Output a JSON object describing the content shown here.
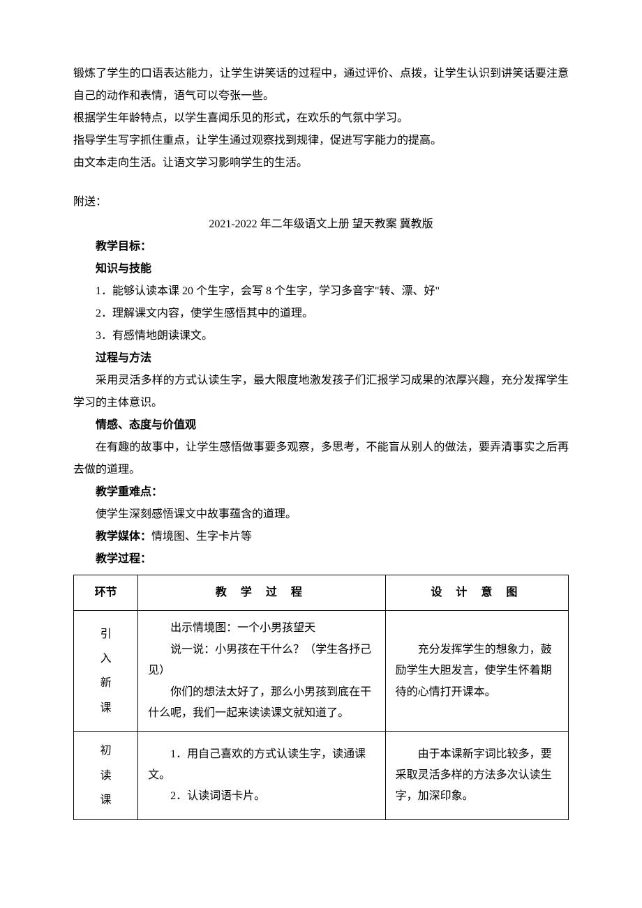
{
  "top_paragraphs": {
    "p1": "锻炼了学生的口语表达能力，让学生讲笑话的过程中，通过评价、点拨，让学生认识到讲笑话要注意自己的动作和表情，语气可以夸张一些。",
    "p2": "根据学生年龄特点，以学生喜闻乐见的形式，在欢乐的气氛中学习。",
    "p3": "指导学生写字抓住重点，让学生通过观察找到规律，促进写字能力的提高。",
    "p4": "由文本走向生活。让语文学习影响学生的生活。"
  },
  "fusong": "附送：",
  "title": "2021-2022 年二年级语文上册 望天教案 冀教版",
  "sections": {
    "goal_heading": "教学目标：",
    "knowledge_heading": "知识与技能",
    "k1": "1．能够认读本课 20 个生字，会写 8 个生字，学习多音字\"转、漂、好\"",
    "k2": "2．理解课文内容，使学生感悟其中的道理。",
    "k3": "3．有感情地朗读课文。",
    "process_heading": "过程与方法",
    "process_text": "采用灵活多样的方式认读生字，最大限度地激发孩子们汇报学习成果的浓厚兴趣，充分发挥学生学习的主体意识。",
    "emotion_heading": "情感、态度与价值观",
    "emotion_text": "在有趣的故事中，让学生感悟做事要多观察，多思考，不能盲从别人的做法，要弄清事实之后再去做的道理。",
    "difficulty_heading": "教学重难点：",
    "difficulty_text": "使学生深刻感悟课文中故事蕴含的道理。",
    "media_heading": "教学媒体：",
    "media_text": "情境图、生字卡片等",
    "process_flow_heading": "教学过程："
  },
  "table": {
    "headers": {
      "col1": "环节",
      "col2": "教 学 过 程",
      "col3": "设 计 意 图"
    },
    "rows": [
      {
        "stage": "引\n入\n新\n课",
        "process": [
          "出示情境图：一个小男孩望天",
          "说一说：小男孩在干什么？（学生各抒己见）",
          "你们的想法太好了，那么小男孩到底在干什么呢，我们一起来读读课文就知道了。"
        ],
        "intent": "充分发挥学生的想象力，鼓励学生大胆发言，使学生怀着期待的心情打开课本。"
      },
      {
        "stage": "初\n读\n课",
        "process": [
          "1．用自己喜欢的方式认读生字，读通课文。",
          "2．认读词语卡片。"
        ],
        "intent": "由于本课新字词比较多，要采取灵活多样的方法多次认读生字，加深印象。"
      }
    ]
  }
}
